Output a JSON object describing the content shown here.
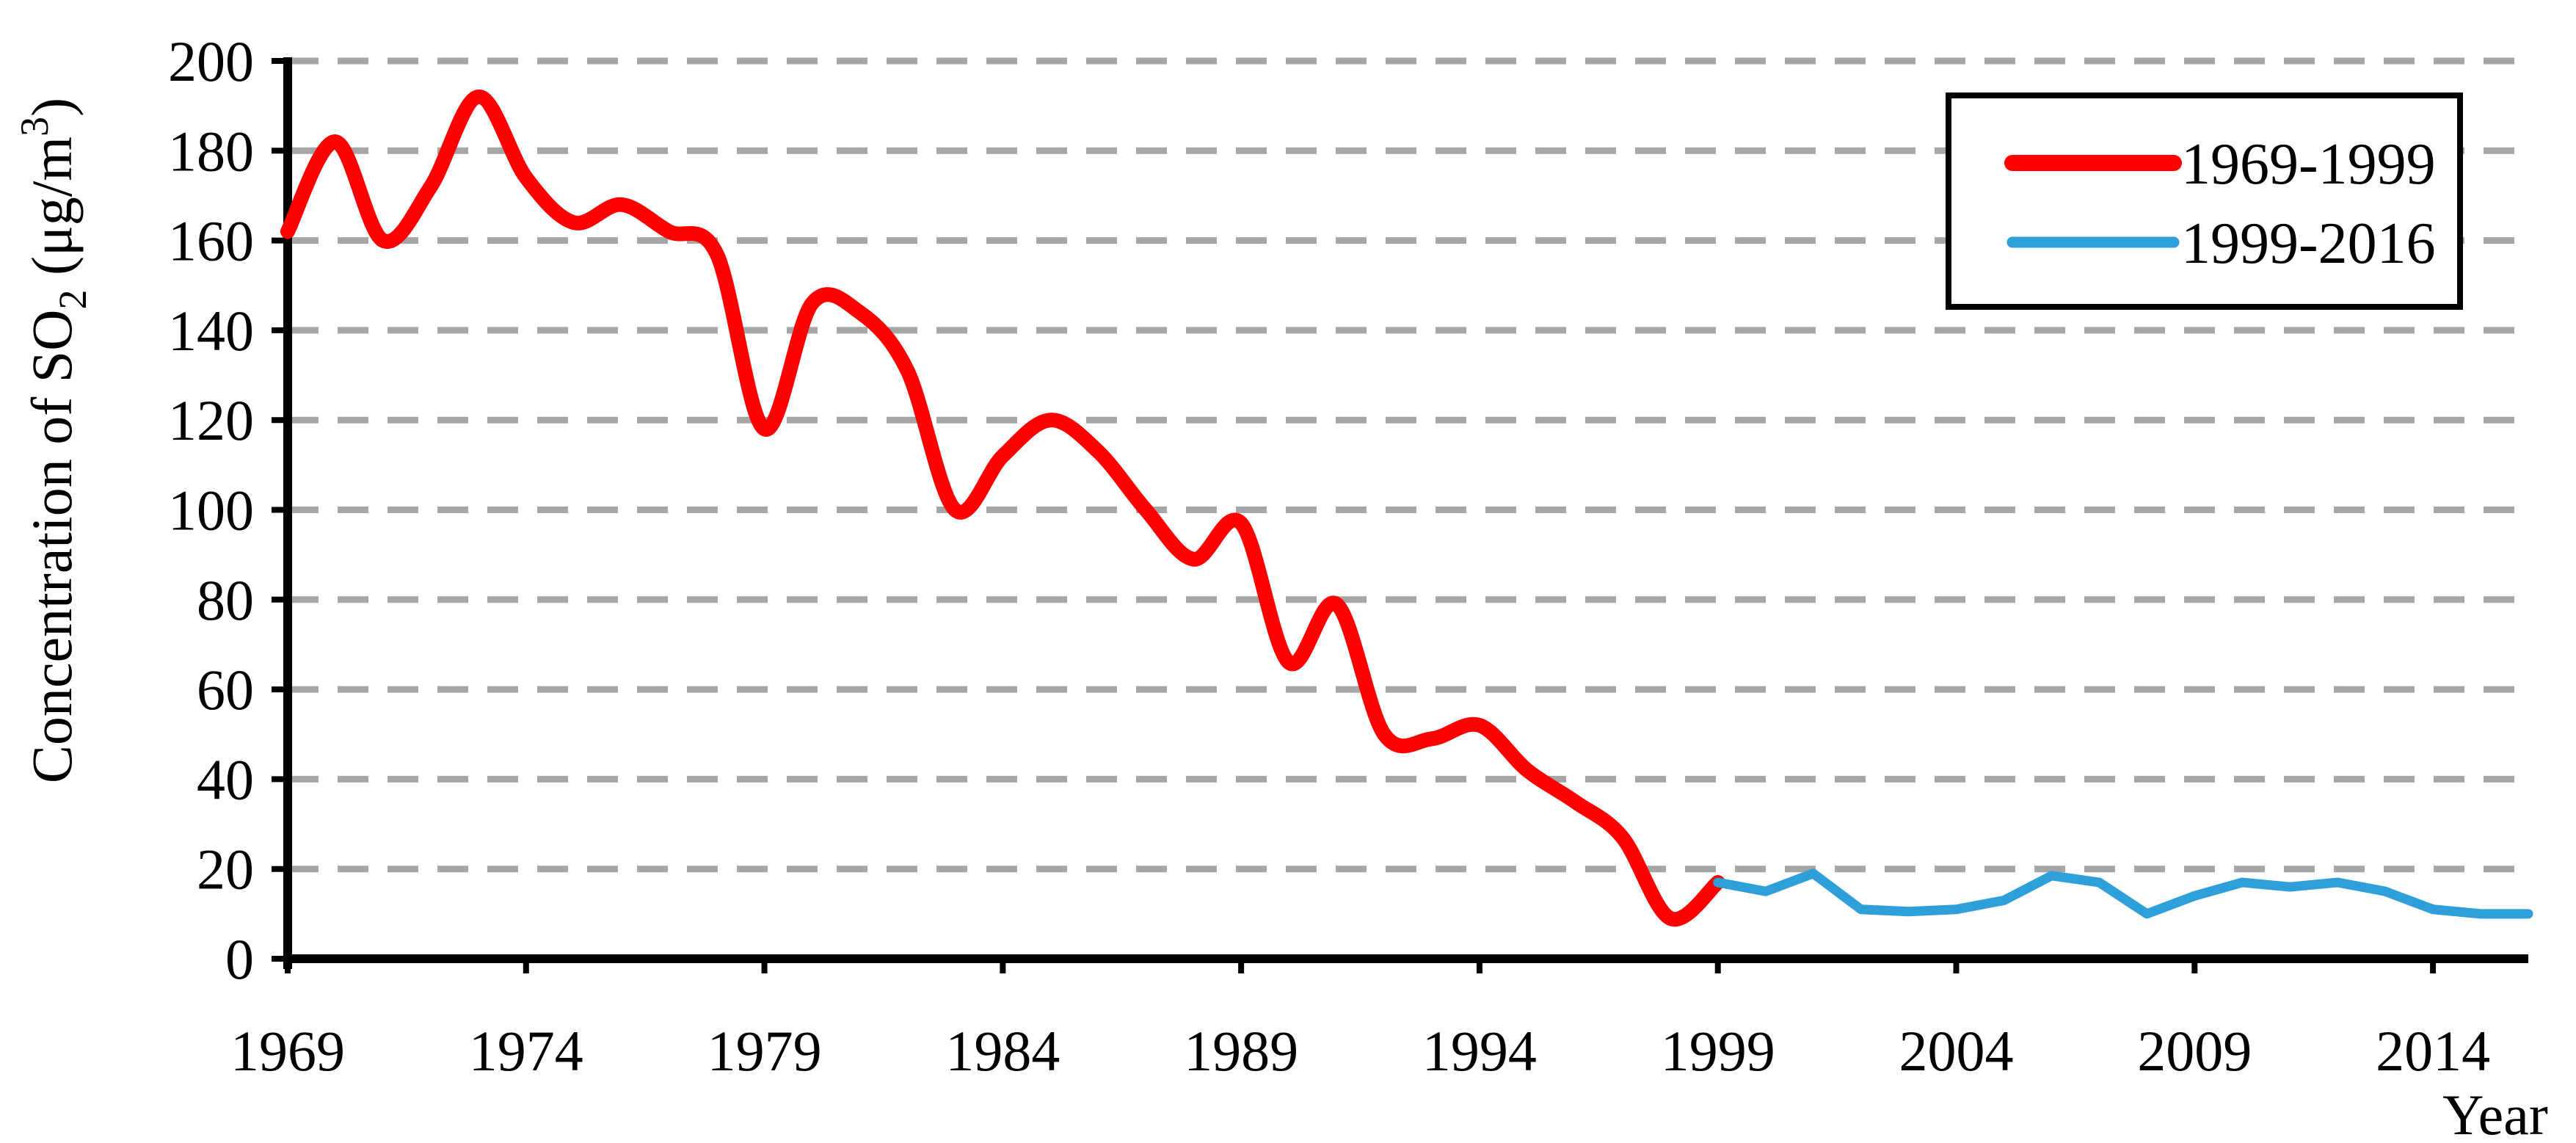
{
  "page": {
    "background": "#FFFFFF"
  },
  "chart_data": {
    "type": "line",
    "title": "",
    "xlabel": "Year",
    "ylabel": "Concentration of SO2 (μg/m3)",
    "ylabel_parts": {
      "main": "Concentration of SO",
      "sub": "2",
      "mid": " (μg/m",
      "sup": "3",
      "end": ")"
    },
    "xlim": [
      1969,
      2016
    ],
    "ylim": [
      0,
      200
    ],
    "y_tick_step": 20,
    "x_tick_labels": [
      1969,
      1974,
      1979,
      1984,
      1989,
      1994,
      1999,
      2004,
      2009,
      2014
    ],
    "grid": {
      "horizontal_dashed": true,
      "color": "#A6A6A6"
    },
    "axis_color": "#000000",
    "legend": {
      "position": "top-right",
      "border_color": "#000000",
      "fill": "#FFFFFF"
    },
    "series": [
      {
        "name": "1969-1999",
        "color": "#FE0000",
        "stroke_width": 20,
        "smooth": true,
        "start_year": 1969,
        "values": [
          162,
          182,
          160,
          172,
          192,
          174,
          164,
          168,
          162,
          157,
          118,
          146,
          144,
          131,
          100,
          112,
          120,
          113,
          100,
          89,
          97,
          66,
          79,
          50,
          49,
          52,
          42,
          35,
          27,
          9,
          17
        ]
      },
      {
        "name": "1999-2016",
        "color": "#2E9FD9",
        "stroke_width": 13,
        "smooth": false,
        "start_year": 1999,
        "values": [
          17,
          15,
          19,
          11,
          10.5,
          11,
          13,
          18.5,
          17,
          10,
          14,
          17,
          16,
          17,
          15,
          11,
          10,
          10
        ]
      }
    ]
  }
}
